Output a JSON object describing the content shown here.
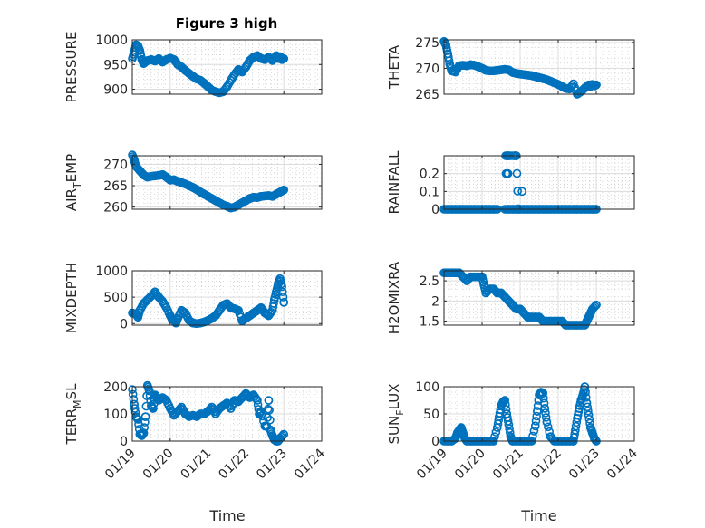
{
  "figure": {
    "title": "Figure 3 high",
    "xlabel": "Time",
    "marker_color": "#0072BD"
  },
  "chart_data": [
    {
      "type": "scatter",
      "id": "pressure",
      "ylabel": "PRESSURE",
      "ylabel_sub": "",
      "ylabel_sup": "",
      "title": "Figure 3 high",
      "xlim": [
        "01/19",
        "01/24"
      ],
      "ylim": [
        890,
        1000
      ],
      "yticks": [
        900,
        950,
        1000
      ],
      "ytick_labels": [
        "900",
        "950",
        "1000"
      ],
      "xticks": [
        0,
        1,
        2,
        3,
        4,
        5
      ],
      "xtick_labels": [],
      "grid": true,
      "x_days": [
        0.0,
        0.05,
        0.1,
        0.15,
        0.2,
        0.25,
        0.3,
        0.4,
        0.5,
        0.6,
        0.7,
        0.8,
        0.9,
        1.0,
        1.1,
        1.2,
        1.3,
        1.4,
        1.5,
        1.6,
        1.7,
        1.8,
        1.9,
        2.0,
        2.1,
        2.2,
        2.3,
        2.4,
        2.5,
        2.6,
        2.7,
        2.8,
        2.9,
        3.0,
        3.1,
        3.2,
        3.3,
        3.4,
        3.5,
        3.6,
        3.7,
        3.8,
        3.85,
        3.9,
        3.95,
        4.0
      ],
      "y": [
        962,
        975,
        990,
        988,
        978,
        960,
        952,
        958,
        960,
        957,
        962,
        955,
        960,
        963,
        960,
        950,
        945,
        938,
        932,
        926,
        921,
        918,
        912,
        905,
        898,
        895,
        893,
        895,
        905,
        918,
        930,
        940,
        935,
        945,
        958,
        965,
        968,
        962,
        960,
        965,
        958,
        968,
        962,
        966,
        960,
        962
      ]
    },
    {
      "type": "scatter",
      "id": "theta",
      "ylabel": "THETA",
      "ylabel_sub": "",
      "ylabel_sup": "",
      "xlim": [
        "01/19",
        "01/24"
      ],
      "ylim": [
        265,
        275.5
      ],
      "yticks": [
        265,
        270,
        275
      ],
      "ytick_labels": [
        "265",
        "270",
        "275"
      ],
      "xticks": [
        0,
        1,
        2,
        3,
        4,
        5
      ],
      "xtick_labels": [],
      "grid": true,
      "x_days": [
        0.0,
        0.05,
        0.1,
        0.15,
        0.2,
        0.3,
        0.4,
        0.5,
        0.6,
        0.7,
        0.8,
        0.9,
        1.0,
        1.1,
        1.2,
        1.3,
        1.4,
        1.5,
        1.6,
        1.7,
        1.8,
        1.9,
        2.0,
        2.1,
        2.2,
        2.3,
        2.4,
        2.5,
        2.6,
        2.7,
        2.8,
        2.9,
        3.0,
        3.1,
        3.2,
        3.3,
        3.4,
        3.5,
        3.6,
        3.7,
        3.8,
        3.85,
        3.9,
        3.95,
        4.0
      ],
      "y": [
        275.2,
        274.5,
        272.8,
        270.8,
        269.5,
        269.3,
        270.5,
        270.6,
        270.5,
        270.7,
        270.6,
        270.3,
        270.0,
        269.6,
        269.5,
        269.5,
        269.6,
        269.7,
        269.8,
        269.7,
        269.2,
        269.0,
        268.9,
        268.8,
        268.7,
        268.6,
        268.4,
        268.2,
        268.0,
        267.8,
        267.5,
        267.2,
        266.9,
        266.5,
        266.1,
        266.0,
        267.0,
        265.0,
        265.5,
        266.2,
        266.8,
        266.5,
        266.9,
        266.6,
        266.8
      ]
    },
    {
      "type": "scatter",
      "id": "air_temp",
      "ylabel": "AIR",
      "ylabel_sub": "T",
      "ylabel_tail": "EMP",
      "xlim": [
        "01/19",
        "01/24"
      ],
      "ylim": [
        259.5,
        272
      ],
      "yticks": [
        260,
        265,
        270
      ],
      "ytick_labels": [
        "260",
        "265",
        "270"
      ],
      "xticks": [
        0,
        1,
        2,
        3,
        4,
        5
      ],
      "xtick_labels": [],
      "grid": true,
      "x_days": [
        0.0,
        0.05,
        0.1,
        0.2,
        0.3,
        0.4,
        0.5,
        0.6,
        0.7,
        0.8,
        0.9,
        1.0,
        1.1,
        1.2,
        1.3,
        1.4,
        1.5,
        1.6,
        1.7,
        1.8,
        1.9,
        2.0,
        2.1,
        2.2,
        2.3,
        2.4,
        2.5,
        2.6,
        2.7,
        2.8,
        2.9,
        3.0,
        3.1,
        3.2,
        3.3,
        3.4,
        3.5,
        3.6,
        3.7,
        3.8,
        3.9,
        4.0
      ],
      "y": [
        272.2,
        271.0,
        269.5,
        268.5,
        267.5,
        267.0,
        267.2,
        267.3,
        267.4,
        267.6,
        267.0,
        266.3,
        266.4,
        266.0,
        265.7,
        265.4,
        265.0,
        264.6,
        264.1,
        263.5,
        263.0,
        262.5,
        262.0,
        261.5,
        261.0,
        260.5,
        260.2,
        259.8,
        260.0,
        260.5,
        261.0,
        261.5,
        262.0,
        262.3,
        262.2,
        262.5,
        262.6,
        262.7,
        262.5,
        263.0,
        263.5,
        264.0
      ]
    },
    {
      "type": "scatter",
      "id": "rainfall",
      "ylabel": "RAINFALL",
      "ylabel_sub": "",
      "ylabel_sup": "",
      "xlim": [
        "01/19",
        "01/24"
      ],
      "ylim": [
        0,
        0.3
      ],
      "yticks": [
        0,
        0.1,
        0.2
      ],
      "ytick_labels": [
        "0",
        "0.1",
        "0.2"
      ],
      "xticks": [
        0,
        1,
        2,
        3,
        4,
        5
      ],
      "xtick_labels": [],
      "grid": true,
      "x_days": [
        0.0,
        0.1,
        0.2,
        0.3,
        0.4,
        0.5,
        0.6,
        0.7,
        0.8,
        0.9,
        1.0,
        1.1,
        1.2,
        1.3,
        1.4,
        1.6,
        1.7,
        1.8,
        1.9,
        2.0,
        2.1,
        2.2,
        2.3,
        2.4,
        2.5,
        2.6,
        2.7,
        2.8,
        2.9,
        3.0,
        3.1,
        3.2,
        3.3,
        3.4,
        3.5,
        3.6,
        3.7,
        3.8,
        3.9,
        4.0,
        1.62,
        1.67,
        1.72,
        1.85,
        1.9,
        1.95,
        1.63,
        1.68,
        2.05
      ],
      "y": [
        0,
        0,
        0,
        0,
        0,
        0,
        0,
        0,
        0,
        0,
        0,
        0,
        0,
        0,
        0,
        0,
        0,
        0,
        0,
        0,
        0,
        0,
        0,
        0,
        0,
        0,
        0,
        0,
        0,
        0,
        0,
        0,
        0,
        0,
        0,
        0,
        0,
        0,
        0,
        0,
        0.3,
        0.3,
        0.3,
        0.3,
        0.3,
        0,
        0.2,
        0.2,
        0.1
      ]
    },
    {
      "type": "scatter",
      "id": "mixdepth",
      "ylabel": "MIXDEPTH",
      "ylabel_sub": "",
      "ylabel_sup": "",
      "xlim": [
        "01/19",
        "01/24"
      ],
      "ylim": [
        -30,
        1000
      ],
      "yticks": [
        0,
        500,
        1000
      ],
      "ytick_labels": [
        "0",
        "500",
        "1000"
      ],
      "xticks": [
        0,
        1,
        2,
        3,
        4,
        5
      ],
      "xtick_labels": [],
      "grid": true,
      "x_days": [
        0.0,
        0.1,
        0.15,
        0.2,
        0.3,
        0.4,
        0.5,
        0.6,
        0.7,
        0.8,
        0.9,
        1.0,
        1.05,
        1.1,
        1.15,
        1.2,
        1.3,
        1.4,
        1.5,
        1.6,
        1.7,
        1.8,
        1.9,
        2.0,
        2.1,
        2.2,
        2.3,
        2.4,
        2.5,
        2.6,
        2.7,
        2.8,
        2.9,
        3.0,
        3.1,
        3.2,
        3.3,
        3.4,
        3.5,
        3.6,
        3.7,
        3.75,
        3.8,
        3.85,
        3.9,
        3.95,
        4.0
      ],
      "y": [
        200,
        180,
        120,
        250,
        380,
        450,
        520,
        600,
        500,
        420,
        300,
        150,
        80,
        60,
        10,
        100,
        250,
        200,
        60,
        10,
        0,
        10,
        30,
        60,
        100,
        150,
        250,
        350,
        380,
        300,
        280,
        250,
        50,
        100,
        150,
        200,
        250,
        300,
        200,
        150,
        250,
        450,
        600,
        750,
        850,
        700,
        400
      ]
    },
    {
      "type": "scatter",
      "id": "h2omixra",
      "ylabel": "H2OMIXRA",
      "ylabel_sub": "",
      "ylabel_sup": "",
      "xlim": [
        "01/19",
        "01/24"
      ],
      "ylim": [
        1.4,
        2.75
      ],
      "yticks": [
        1.5,
        2,
        2.5
      ],
      "ytick_labels": [
        "1.5",
        "2",
        "2.5"
      ],
      "xticks": [
        0,
        1,
        2,
        3,
        4,
        5
      ],
      "xtick_labels": [],
      "grid": true,
      "x_days": [
        0.0,
        0.1,
        0.2,
        0.3,
        0.4,
        0.5,
        0.6,
        0.7,
        0.8,
        0.9,
        1.0,
        1.05,
        1.1,
        1.2,
        1.3,
        1.4,
        1.5,
        1.6,
        1.7,
        1.8,
        1.9,
        2.0,
        2.1,
        2.2,
        2.3,
        2.4,
        2.5,
        2.6,
        2.7,
        2.8,
        2.9,
        3.0,
        3.1,
        3.2,
        3.3,
        3.4,
        3.5,
        3.6,
        3.7,
        3.75,
        3.8,
        3.85,
        3.9,
        4.0
      ],
      "y": [
        2.7,
        2.7,
        2.7,
        2.7,
        2.7,
        2.6,
        2.5,
        2.6,
        2.6,
        2.6,
        2.6,
        2.4,
        2.2,
        2.3,
        2.3,
        2.2,
        2.2,
        2.1,
        2.0,
        1.9,
        1.8,
        1.8,
        1.7,
        1.6,
        1.6,
        1.6,
        1.6,
        1.5,
        1.5,
        1.5,
        1.5,
        1.5,
        1.5,
        1.4,
        1.4,
        1.4,
        1.4,
        1.4,
        1.4,
        1.5,
        1.6,
        1.7,
        1.8,
        1.9
      ]
    },
    {
      "type": "scatter",
      "id": "terr_msl",
      "ylabel": "TERR",
      "ylabel_sub": "M",
      "ylabel_tail": "SL",
      "xlim": [
        "01/19",
        "01/24"
      ],
      "ylim": [
        0,
        200
      ],
      "yticks": [
        0,
        100,
        200
      ],
      "ytick_labels": [
        "0",
        "100",
        "200"
      ],
      "xticks": [
        0,
        1,
        2,
        3,
        4,
        5
      ],
      "xtick_labels": [
        "01/19",
        "01/20",
        "01/21",
        "01/22",
        "01/23",
        "01/24"
      ],
      "grid": true,
      "x_days": [
        0.0,
        0.05,
        0.1,
        0.15,
        0.2,
        0.25,
        0.3,
        0.35,
        0.4,
        0.45,
        0.5,
        0.55,
        0.6,
        0.65,
        0.7,
        0.8,
        0.9,
        1.0,
        1.1,
        1.2,
        1.3,
        1.4,
        1.5,
        1.6,
        1.7,
        1.8,
        1.9,
        2.0,
        2.1,
        2.2,
        2.3,
        2.4,
        2.5,
        2.6,
        2.7,
        2.8,
        2.9,
        3.0,
        3.1,
        3.2,
        3.3,
        3.35,
        3.4,
        3.5,
        3.55,
        3.6,
        3.65,
        3.7,
        3.75,
        3.8,
        3.85,
        3.9,
        4.0
      ],
      "y": [
        190,
        135,
        90,
        80,
        25,
        20,
        30,
        90,
        205,
        185,
        130,
        120,
        170,
        160,
        150,
        160,
        150,
        120,
        95,
        110,
        125,
        100,
        90,
        95,
        90,
        100,
        100,
        110,
        125,
        100,
        120,
        130,
        140,
        120,
        150,
        145,
        160,
        175,
        160,
        170,
        150,
        100,
        110,
        55,
        55,
        150,
        40,
        20,
        5,
        0,
        0,
        10,
        25
      ]
    },
    {
      "type": "scatter",
      "id": "sun_flux",
      "ylabel": "SUN",
      "ylabel_sub": "F",
      "ylabel_tail": "LUX",
      "xlim": [
        "01/19",
        "01/24"
      ],
      "ylim": [
        0,
        100
      ],
      "yticks": [
        0,
        50,
        100
      ],
      "ytick_labels": [
        "0",
        "50",
        "100"
      ],
      "xticks": [
        0,
        1,
        2,
        3,
        4,
        5
      ],
      "xtick_labels": [
        "01/19",
        "01/20",
        "01/21",
        "01/22",
        "01/23",
        "01/24"
      ],
      "grid": true,
      "x_days": [
        0.0,
        0.1,
        0.2,
        0.3,
        0.35,
        0.4,
        0.45,
        0.5,
        0.55,
        0.6,
        0.7,
        0.8,
        0.9,
        1.0,
        1.1,
        1.2,
        1.3,
        1.4,
        1.45,
        1.5,
        1.55,
        1.6,
        1.65,
        1.7,
        1.75,
        1.8,
        1.9,
        2.0,
        2.1,
        2.2,
        2.3,
        2.4,
        2.45,
        2.5,
        2.55,
        2.6,
        2.65,
        2.7,
        2.8,
        2.9,
        3.0,
        3.1,
        3.2,
        3.3,
        3.4,
        3.45,
        3.5,
        3.55,
        3.6,
        3.65,
        3.7,
        3.75,
        3.8,
        3.85,
        3.9,
        3.95,
        4.0
      ],
      "y": [
        0,
        0,
        0,
        5,
        15,
        20,
        25,
        15,
        5,
        0,
        0,
        0,
        0,
        0,
        0,
        0,
        0,
        25,
        45,
        65,
        72,
        75,
        50,
        30,
        8,
        0,
        0,
        0,
        0,
        0,
        0,
        28,
        55,
        85,
        90,
        88,
        60,
        35,
        8,
        0,
        0,
        0,
        0,
        0,
        0,
        20,
        42,
        60,
        75,
        85,
        100,
        70,
        48,
        25,
        15,
        5,
        0
      ]
    }
  ]
}
